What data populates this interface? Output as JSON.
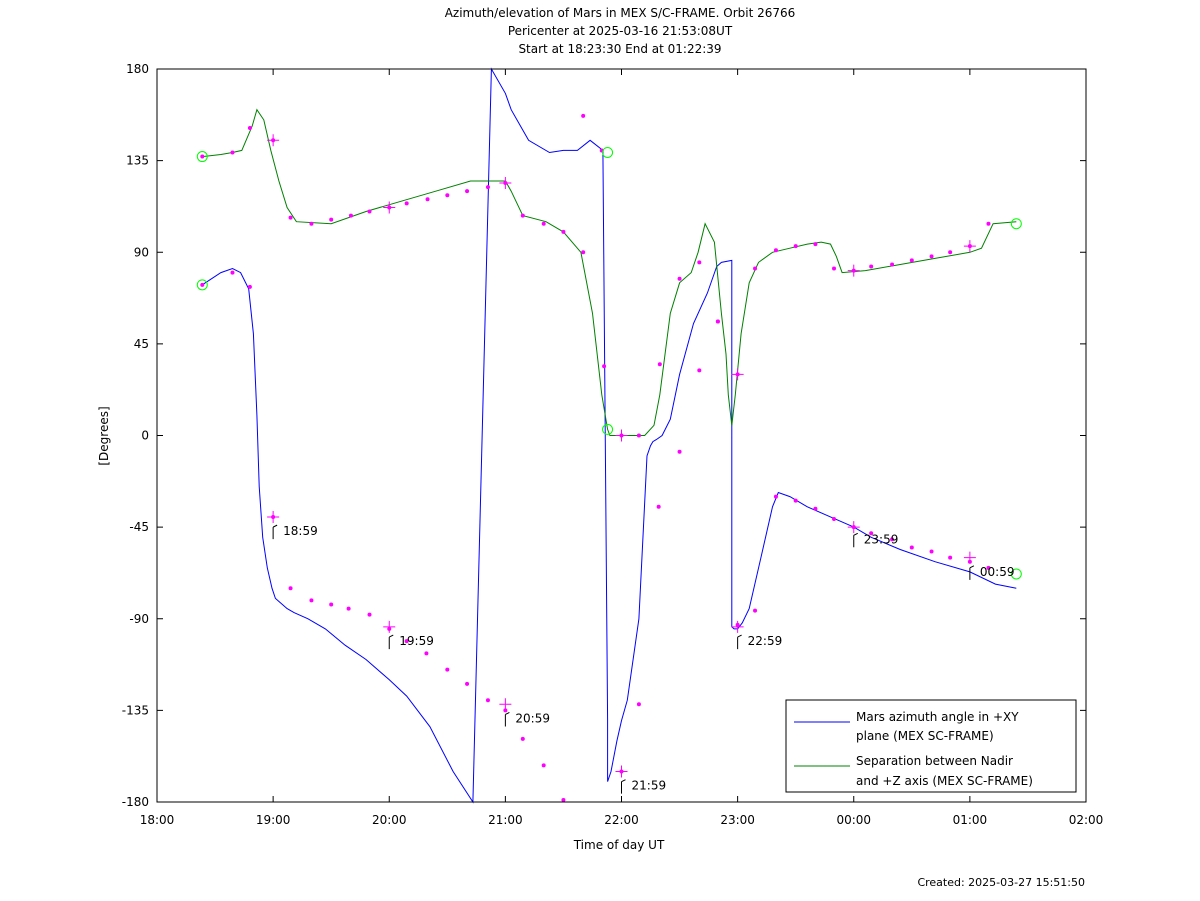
{
  "title_lines": [
    "Azimuth/elevation of Mars in MEX S/C-FRAME.  Orbit 26766",
    "Pericenter at 2025-03-16 21:53:08UT",
    "Start at 18:23:30 End at 01:22:39"
  ],
  "footer": "Created: 2025-03-27 15:51:50",
  "colors": {
    "azimuth": "#0000ff",
    "separation": "#008000",
    "markers": "#ff00ff",
    "endpoints": "#00ff00"
  },
  "chart_data": {
    "type": "line",
    "xlabel": "Time of day UT",
    "ylabel": "[Degrees]",
    "xlim": [
      0,
      8
    ],
    "ylim": [
      -180,
      180
    ],
    "grid": false,
    "legend_position": "bottom-right",
    "x_tick_labels": [
      "18:00",
      "19:00",
      "20:00",
      "21:00",
      "22:00",
      "23:00",
      "00:00",
      "01:00",
      "02:00"
    ],
    "y_ticks": [
      -180,
      -135,
      -90,
      -45,
      0,
      45,
      90,
      135,
      180
    ],
    "series": [
      {
        "name": "Mars azimuth angle in +XY plane (MEX SC-FRAME)",
        "legend_lines": [
          "Mars azimuth angle in +XY",
          "plane (MEX SC-FRAME)"
        ],
        "x": [
          0.39,
          0.55,
          0.65,
          0.72,
          0.79,
          0.83,
          0.86,
          0.88,
          0.91,
          0.95,
          0.99,
          1.02,
          1.06,
          1.12,
          1.18,
          1.3,
          1.45,
          1.62,
          1.8,
          2.0,
          2.15,
          2.35,
          2.55,
          2.72,
          2.88,
          3.0,
          3.05,
          3.2,
          3.38,
          3.5,
          3.5,
          3.62,
          3.73,
          3.84,
          3.88,
          3.88,
          3.91,
          3.96,
          4.0,
          4.05,
          4.15,
          4.22,
          4.25,
          4.27,
          4.3,
          4.35,
          4.42,
          4.5,
          4.62,
          4.74,
          4.82,
          4.86,
          4.95,
          4.95,
          4.97,
          5.0,
          5.04,
          5.1,
          5.2,
          5.3,
          5.35,
          5.45,
          5.6,
          5.8,
          6.0,
          6.15,
          6.4,
          6.7,
          7.0,
          7.22,
          7.4
        ],
        "y": [
          74,
          80,
          82,
          80,
          72,
          50,
          10,
          -25,
          -50,
          -65,
          -75,
          -80,
          -82,
          -85,
          -87,
          -90,
          -95,
          -103,
          -110,
          -120,
          -128,
          -143,
          -165,
          -180,
          180,
          168,
          160,
          145,
          139,
          140,
          140,
          140,
          145,
          140,
          -140,
          -170,
          -165,
          -150,
          -140,
          -130,
          -90,
          -10,
          -5,
          -3,
          -2,
          0,
          8,
          30,
          55,
          70,
          83,
          85,
          86,
          -94,
          -95,
          -95,
          -92,
          -85,
          -60,
          -35,
          -28,
          -30,
          -35,
          -40,
          -45,
          -50,
          -56,
          -62,
          -67,
          -73,
          -75
        ]
      },
      {
        "name": "Separation between Nadir and +Z axis (MEX SC-FRAME)",
        "legend_lines": [
          "Separation between Nadir",
          "and +Z axis (MEX SC-FRAME)"
        ],
        "x": [
          0.39,
          0.55,
          0.65,
          0.73,
          0.82,
          0.86,
          0.92,
          0.98,
          1.05,
          1.12,
          1.2,
          1.5,
          1.8,
          2.1,
          2.4,
          2.7,
          3.0,
          3.05,
          3.15,
          3.35,
          3.5,
          3.65,
          3.75,
          3.83,
          3.88,
          3.9,
          3.94,
          4.0,
          4.1,
          4.2,
          4.28,
          4.33,
          4.42,
          4.5,
          4.6,
          4.66,
          4.72,
          4.8,
          4.86,
          4.9,
          4.92,
          4.95,
          4.98,
          5.03,
          5.1,
          5.18,
          5.3,
          5.45,
          5.6,
          5.72,
          5.8,
          5.85,
          5.9,
          6.1,
          6.4,
          6.7,
          7.0,
          7.1,
          7.2,
          7.4
        ],
        "y": [
          137,
          138,
          139,
          140,
          152,
          160,
          155,
          140,
          125,
          112,
          105,
          104,
          110,
          115,
          120,
          125,
          125,
          120,
          108,
          105,
          100,
          90,
          60,
          20,
          3,
          0,
          0,
          0,
          0,
          0,
          5,
          20,
          60,
          75,
          80,
          90,
          104,
          95,
          60,
          40,
          20,
          5,
          20,
          50,
          75,
          85,
          90,
          92,
          94,
          95,
          94,
          88,
          80,
          81,
          84,
          87,
          90,
          92,
          104,
          105
        ]
      }
    ],
    "markers": [
      [
        0.39,
        74
      ],
      [
        0.65,
        80
      ],
      [
        0.8,
        73
      ],
      [
        1.0,
        -40
      ],
      [
        1.15,
        -75
      ],
      [
        1.33,
        -81
      ],
      [
        1.5,
        -83
      ],
      [
        1.65,
        -85
      ],
      [
        1.83,
        -88
      ],
      [
        2.0,
        -95
      ],
      [
        2.15,
        -101
      ],
      [
        2.32,
        -107
      ],
      [
        2.5,
        -115
      ],
      [
        2.67,
        -122
      ],
      [
        2.85,
        -130
      ],
      [
        3.0,
        -135
      ],
      [
        3.15,
        -149
      ],
      [
        3.33,
        -162
      ],
      [
        3.5,
        -179
      ],
      [
        3.67,
        157
      ],
      [
        3.83,
        140
      ],
      [
        4.0,
        -165
      ],
      [
        4.15,
        -132
      ],
      [
        4.32,
        -35
      ],
      [
        4.5,
        -8
      ],
      [
        4.67,
        32
      ],
      [
        4.83,
        56
      ],
      [
        5.0,
        -93
      ],
      [
        5.15,
        -86
      ],
      [
        5.33,
        -30
      ],
      [
        5.5,
        -32
      ],
      [
        5.67,
        -36
      ],
      [
        5.83,
        -41
      ],
      [
        6.0,
        -45
      ],
      [
        6.15,
        -48
      ],
      [
        6.33,
        -51
      ],
      [
        6.5,
        -55
      ],
      [
        6.67,
        -57
      ],
      [
        6.83,
        -60
      ],
      [
        7.0,
        -62
      ],
      [
        7.16,
        -65
      ],
      [
        0.39,
        137
      ],
      [
        0.65,
        139
      ],
      [
        0.8,
        151
      ],
      [
        1.0,
        145
      ],
      [
        1.15,
        107
      ],
      [
        1.33,
        104
      ],
      [
        1.5,
        106
      ],
      [
        1.67,
        108
      ],
      [
        1.83,
        110
      ],
      [
        2.0,
        112
      ],
      [
        2.15,
        114
      ],
      [
        2.33,
        116
      ],
      [
        2.5,
        118
      ],
      [
        2.67,
        120
      ],
      [
        2.85,
        122
      ],
      [
        3.0,
        124
      ],
      [
        3.15,
        108
      ],
      [
        3.33,
        104
      ],
      [
        3.5,
        100
      ],
      [
        3.67,
        90
      ],
      [
        3.85,
        34
      ],
      [
        4.0,
        0
      ],
      [
        4.15,
        0
      ],
      [
        4.33,
        35
      ],
      [
        4.5,
        77
      ],
      [
        4.67,
        85
      ],
      [
        4.83,
        56
      ],
      [
        5.0,
        30
      ],
      [
        5.15,
        82
      ],
      [
        5.33,
        91
      ],
      [
        5.5,
        93
      ],
      [
        5.67,
        94
      ],
      [
        5.83,
        82
      ],
      [
        6.0,
        81
      ],
      [
        6.15,
        83
      ],
      [
        6.33,
        84
      ],
      [
        6.5,
        86
      ],
      [
        6.67,
        88
      ],
      [
        6.83,
        90
      ],
      [
        7.0,
        93
      ],
      [
        7.16,
        104
      ]
    ],
    "plus_markers": [
      [
        1.0,
        -40
      ],
      [
        2.0,
        -94
      ],
      [
        3.0,
        -132
      ],
      [
        4.0,
        -165
      ],
      [
        5.0,
        -94
      ],
      [
        6.0,
        -45
      ],
      [
        7.0,
        -60
      ],
      [
        1.0,
        145
      ],
      [
        2.0,
        112
      ],
      [
        3.0,
        124
      ],
      [
        4.0,
        0
      ],
      [
        5.0,
        30
      ],
      [
        6.0,
        81
      ],
      [
        7.0,
        93
      ]
    ],
    "endpoint_circles": [
      [
        0.39,
        74
      ],
      [
        0.39,
        137
      ],
      [
        3.88,
        139
      ],
      [
        3.88,
        3
      ],
      [
        7.4,
        104
      ],
      [
        7.4,
        -68
      ]
    ],
    "hour_annotations": [
      {
        "label": "18:59",
        "x": 1.0,
        "y": -45
      },
      {
        "label": "19:59",
        "x": 2.0,
        "y": -99
      },
      {
        "label": "20:59",
        "x": 3.0,
        "y": -137
      },
      {
        "label": "21:59",
        "x": 4.0,
        "y": -170
      },
      {
        "label": "22:59",
        "x": 5.0,
        "y": -99
      },
      {
        "label": "23:59",
        "x": 6.0,
        "y": -49
      },
      {
        "label": "00:59",
        "x": 7.0,
        "y": -65
      }
    ]
  }
}
